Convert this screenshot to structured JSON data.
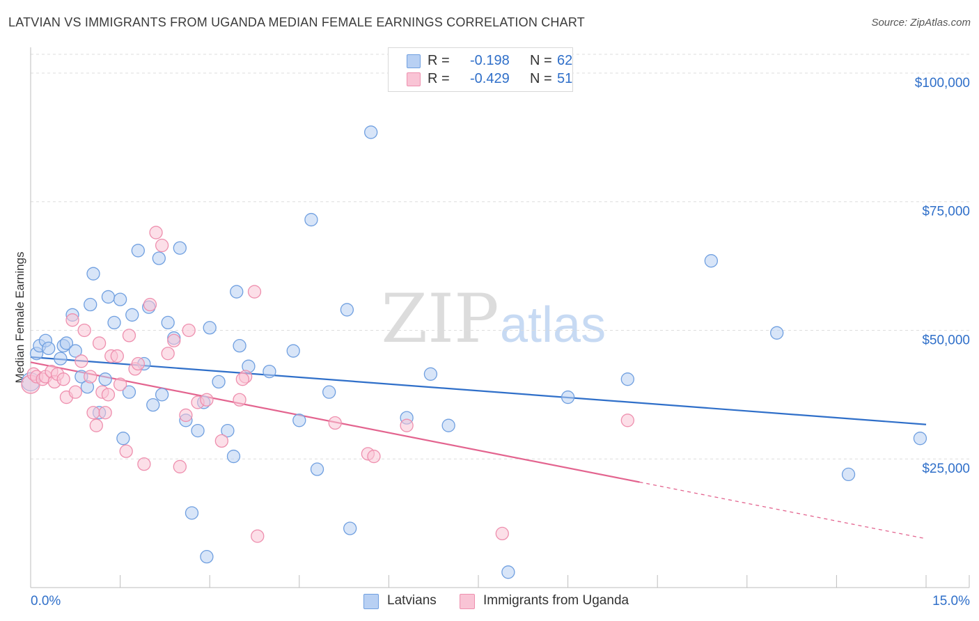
{
  "header": {
    "title": "LATVIAN VS IMMIGRANTS FROM UGANDA MEDIAN FEMALE EARNINGS CORRELATION CHART",
    "source": "Source: ZipAtlas.com"
  },
  "watermark": {
    "zip": "ZIP",
    "atlas": "atlas"
  },
  "legend": {
    "rows": [
      {
        "r_label": "R =",
        "r_value": "-0.198",
        "n_label": "N =",
        "n_value": "62"
      },
      {
        "r_label": "R =",
        "r_value": "-0.429",
        "n_label": "N =",
        "n_value": "51"
      }
    ]
  },
  "bottom_legend": {
    "series_a": "Latvians",
    "series_b": "Immigrants from Uganda"
  },
  "colors": {
    "latvians_fill": "#b8d0f3",
    "latvians_stroke": "#6f9fe0",
    "latvians_line": "#2f6fc9",
    "uganda_fill": "#f9c4d5",
    "uganda_stroke": "#ee8fae",
    "uganda_line": "#e3648f",
    "axis_text": "#2f6fc9",
    "grid": "#dddddd"
  },
  "chart_data": {
    "type": "scatter",
    "title": "LATVIAN VS IMMIGRANTS FROM UGANDA MEDIAN FEMALE EARNINGS CORRELATION CHART",
    "xlabel": "",
    "ylabel": "Median Female Earnings",
    "xlim": [
      0,
      15
    ],
    "ylim": [
      0,
      105000
    ],
    "x_tick_labels": [
      "0.0%",
      "15.0%"
    ],
    "y_ticks": [
      {
        "value": 25000,
        "label": "$25,000"
      },
      {
        "value": 50000,
        "label": "$50,000"
      },
      {
        "value": 75000,
        "label": "$75,000"
      },
      {
        "value": 100000,
        "label": "$100,000"
      }
    ],
    "grid": true,
    "legend_position": "top-center",
    "series": [
      {
        "name": "Latvians",
        "r": -0.198,
        "n": 62,
        "trend": {
          "x": [
            0,
            15
          ],
          "y": [
            44800,
            31700
          ]
        },
        "points": [
          [
            0.0,
            40000
          ],
          [
            0.1,
            45500
          ],
          [
            0.15,
            47000
          ],
          [
            0.25,
            48000
          ],
          [
            0.3,
            46500
          ],
          [
            0.5,
            44500
          ],
          [
            0.55,
            47000
          ],
          [
            0.6,
            47500
          ],
          [
            0.7,
            53000
          ],
          [
            0.75,
            46000
          ],
          [
            0.85,
            41000
          ],
          [
            0.95,
            39000
          ],
          [
            1.0,
            55000
          ],
          [
            1.05,
            61000
          ],
          [
            1.15,
            34000
          ],
          [
            1.25,
            40500
          ],
          [
            1.3,
            56500
          ],
          [
            1.4,
            51500
          ],
          [
            1.5,
            56000
          ],
          [
            1.55,
            29000
          ],
          [
            1.65,
            38000
          ],
          [
            1.8,
            65500
          ],
          [
            1.9,
            43500
          ],
          [
            1.98,
            54500
          ],
          [
            2.05,
            35500
          ],
          [
            2.15,
            64000
          ],
          [
            2.2,
            37500
          ],
          [
            2.3,
            51500
          ],
          [
            2.4,
            48500
          ],
          [
            2.5,
            66000
          ],
          [
            2.6,
            32500
          ],
          [
            2.7,
            14500
          ],
          [
            2.8,
            30500
          ],
          [
            2.9,
            36000
          ],
          [
            2.95,
            6000
          ],
          [
            3.0,
            50500
          ],
          [
            3.15,
            40000
          ],
          [
            3.3,
            30500
          ],
          [
            3.4,
            25500
          ],
          [
            3.45,
            57500
          ],
          [
            3.5,
            47000
          ],
          [
            3.65,
            43000
          ],
          [
            4.0,
            42000
          ],
          [
            4.4,
            46000
          ],
          [
            4.5,
            32500
          ],
          [
            4.7,
            71500
          ],
          [
            4.8,
            23000
          ],
          [
            5.0,
            38000
          ],
          [
            5.3,
            54000
          ],
          [
            5.35,
            11500
          ],
          [
            5.7,
            88500
          ],
          [
            6.3,
            33000
          ],
          [
            6.7,
            41500
          ],
          [
            7.0,
            31500
          ],
          [
            8.0,
            3000
          ],
          [
            9.0,
            37000
          ],
          [
            10.0,
            40500
          ],
          [
            11.4,
            63500
          ],
          [
            12.5,
            49500
          ],
          [
            13.7,
            22000
          ],
          [
            14.9,
            29000
          ],
          [
            1.7,
            53000
          ]
        ]
      },
      {
        "name": "Immigrants from Uganda",
        "r": -0.429,
        "n": 51,
        "trend": {
          "x": [
            0,
            10.2
          ],
          "y": [
            43800,
            20500
          ]
        },
        "trend_dashed": {
          "x": [
            10.2,
            15
          ],
          "y": [
            20500,
            9500
          ]
        },
        "points": [
          [
            0.0,
            39500
          ],
          [
            0.05,
            41500
          ],
          [
            0.1,
            41000
          ],
          [
            0.2,
            40500
          ],
          [
            0.25,
            41000
          ],
          [
            0.35,
            42000
          ],
          [
            0.4,
            40000
          ],
          [
            0.45,
            41500
          ],
          [
            0.55,
            40500
          ],
          [
            0.6,
            37000
          ],
          [
            0.7,
            52000
          ],
          [
            0.75,
            38000
          ],
          [
            0.85,
            44000
          ],
          [
            0.9,
            50000
          ],
          [
            1.0,
            41000
          ],
          [
            1.05,
            34000
          ],
          [
            1.1,
            31500
          ],
          [
            1.15,
            47500
          ],
          [
            1.2,
            38000
          ],
          [
            1.25,
            34000
          ],
          [
            1.3,
            37500
          ],
          [
            1.35,
            45000
          ],
          [
            1.45,
            45000
          ],
          [
            1.5,
            39500
          ],
          [
            1.6,
            26500
          ],
          [
            1.65,
            49000
          ],
          [
            1.75,
            42500
          ],
          [
            1.8,
            43500
          ],
          [
            1.9,
            24000
          ],
          [
            2.0,
            55000
          ],
          [
            2.1,
            69000
          ],
          [
            2.2,
            66500
          ],
          [
            2.3,
            45500
          ],
          [
            2.4,
            48000
          ],
          [
            2.5,
            23500
          ],
          [
            2.6,
            33500
          ],
          [
            2.65,
            50000
          ],
          [
            2.8,
            36000
          ],
          [
            2.95,
            36500
          ],
          [
            3.2,
            28500
          ],
          [
            3.5,
            36500
          ],
          [
            3.6,
            41000
          ],
          [
            3.75,
            57500
          ],
          [
            3.8,
            10000
          ],
          [
            5.1,
            32000
          ],
          [
            5.65,
            26000
          ],
          [
            5.75,
            25500
          ],
          [
            6.3,
            31500
          ],
          [
            7.9,
            10500
          ],
          [
            10.0,
            32500
          ],
          [
            3.55,
            40500
          ]
        ]
      }
    ]
  }
}
